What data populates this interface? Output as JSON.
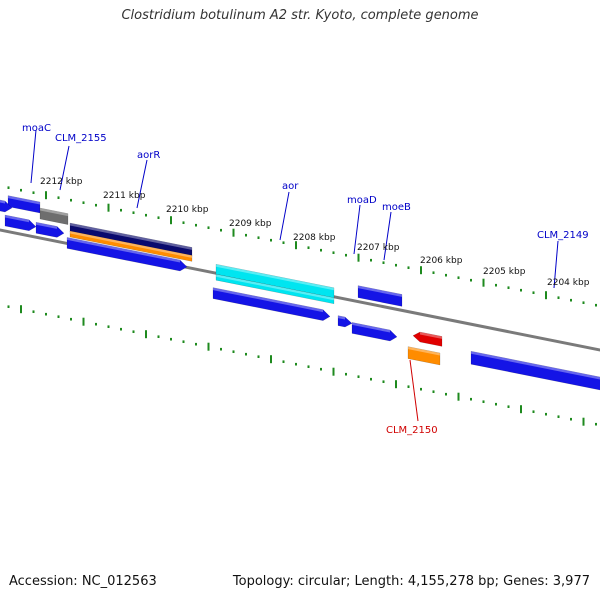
{
  "title": "Clostridium botulinum A2 str. Kyoto, complete genome",
  "footer": {
    "accession": "Accession: NC_012563",
    "summary": "Topology: circular; Length: 4,155,278 bp; Genes: 3,977"
  },
  "colors": {
    "backbone": "#7a7a7a",
    "tick": "#1e8a1e",
    "gene_blue": "#1414e6",
    "gene_navy": "#0a0a6e",
    "gene_orange": "#ff8c00",
    "gene_cyan": "#00e5f0",
    "gene_grey": "#6e6e6e",
    "gene_red": "#e00000",
    "label_blue": "#0000c8",
    "label_red": "#d00000"
  },
  "ruler": [
    "2212 kbp",
    "2211 kbp",
    "2210 kbp",
    "2209 kbp",
    "2208 kbp",
    "2207 kbp",
    "2206 kbp",
    "2205 kbp",
    "2204 kbp"
  ],
  "gene_labels": [
    {
      "text": "moaC",
      "color": "label_blue"
    },
    {
      "text": "CLM_2155",
      "color": "label_blue"
    },
    {
      "text": "aorR",
      "color": "label_blue"
    },
    {
      "text": "aor",
      "color": "label_blue"
    },
    {
      "text": "moaD",
      "color": "label_blue"
    },
    {
      "text": "moeB",
      "color": "label_blue"
    },
    {
      "text": "CLM_2149",
      "color": "label_blue"
    },
    {
      "text": "CLM_2150",
      "color": "label_red"
    }
  ]
}
